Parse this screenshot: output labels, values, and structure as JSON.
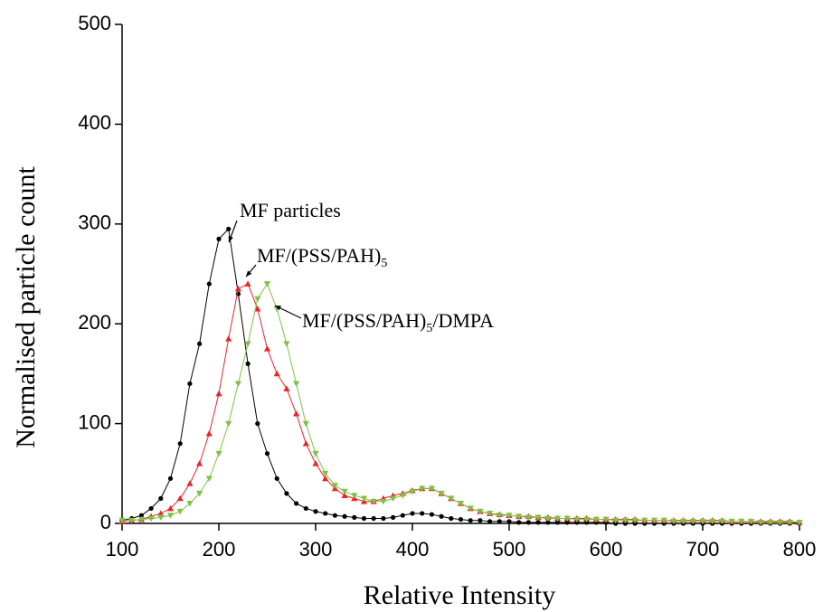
{
  "chart_data": {
    "type": "line",
    "xlabel": "Relative Intensity",
    "ylabel": "Normalised particle count",
    "xlim": [
      100,
      800
    ],
    "xticks": [
      100,
      200,
      300,
      400,
      500,
      600,
      700,
      800
    ],
    "ylim": [
      0,
      500
    ],
    "yticks": [
      0,
      100,
      200,
      300,
      400,
      500
    ],
    "x": [
      100,
      110,
      120,
      130,
      140,
      150,
      160,
      170,
      180,
      190,
      200,
      210,
      220,
      230,
      240,
      250,
      260,
      270,
      280,
      290,
      300,
      310,
      320,
      330,
      340,
      350,
      360,
      370,
      380,
      390,
      400,
      410,
      420,
      430,
      440,
      450,
      460,
      470,
      480,
      490,
      500,
      510,
      520,
      530,
      540,
      550,
      560,
      570,
      580,
      590,
      600,
      610,
      620,
      630,
      640,
      650,
      660,
      670,
      680,
      690,
      700,
      710,
      720,
      730,
      740,
      750,
      760,
      770,
      780,
      790,
      800
    ],
    "series": [
      {
        "color": "#000000",
        "marker": "circle",
        "values": [
          3,
          5,
          8,
          15,
          25,
          45,
          80,
          140,
          180,
          240,
          285,
          295,
          230,
          160,
          100,
          70,
          45,
          30,
          20,
          15,
          12,
          10,
          8,
          7,
          6,
          5,
          5,
          5,
          6,
          8,
          10,
          10,
          9,
          7,
          5,
          4,
          3,
          3,
          2,
          2,
          2,
          1,
          1,
          1,
          1,
          1,
          1,
          1,
          1,
          1,
          1,
          0,
          0,
          0,
          0,
          0,
          0,
          0,
          0,
          0,
          0,
          0,
          0,
          0,
          0,
          0,
          0,
          0,
          0,
          0,
          0
        ]
      },
      {
        "color": "#e8262a",
        "marker": "triangle-up",
        "values": [
          2,
          3,
          4,
          7,
          10,
          15,
          25,
          40,
          60,
          90,
          130,
          185,
          235,
          240,
          215,
          175,
          150,
          135,
          110,
          80,
          60,
          45,
          35,
          28,
          25,
          22,
          22,
          25,
          28,
          30,
          33,
          35,
          35,
          30,
          25,
          20,
          15,
          12,
          10,
          9,
          8,
          7,
          7,
          6,
          6,
          5,
          5,
          5,
          5,
          4,
          4,
          4,
          4,
          4,
          3,
          3,
          3,
          3,
          3,
          3,
          3,
          3,
          3,
          2,
          2,
          2,
          2,
          2,
          2,
          2,
          1
        ]
      },
      {
        "color": "#7dc242",
        "marker": "triangle-down",
        "values": [
          3,
          3,
          4,
          5,
          6,
          8,
          12,
          20,
          30,
          45,
          70,
          100,
          140,
          180,
          225,
          240,
          215,
          180,
          140,
          100,
          70,
          50,
          38,
          32,
          28,
          25,
          22,
          22,
          25,
          28,
          32,
          35,
          35,
          30,
          25,
          20,
          15,
          12,
          10,
          8,
          8,
          7,
          6,
          6,
          5,
          5,
          5,
          4,
          4,
          4,
          4,
          3,
          3,
          3,
          3,
          3,
          3,
          2,
          2,
          2,
          2,
          2,
          2,
          2,
          2,
          2,
          1,
          1,
          1,
          1,
          1
        ]
      }
    ],
    "annotations": [
      {
        "segments": [
          {
            "text": "MF particles"
          }
        ]
      },
      {
        "segments": [
          {
            "text": "MF/(PSS/PAH)"
          },
          {
            "sub": "5"
          }
        ]
      },
      {
        "segments": [
          {
            "text": "MF/(PSS/PAH)"
          },
          {
            "sub": "5"
          },
          {
            "text": "/DMPA"
          }
        ]
      }
    ]
  }
}
